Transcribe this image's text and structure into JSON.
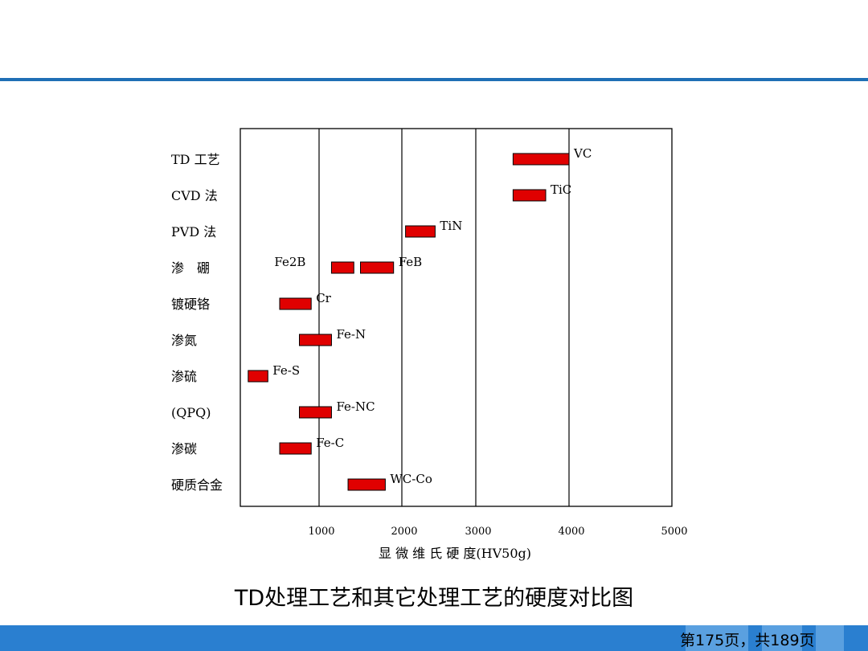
{
  "chart_data": {
    "type": "bar",
    "subtype": "floating-range",
    "xlabel": "显 微 维 氏 硬 度(HV50g)",
    "xlim": [
      0,
      5000
    ],
    "xticks": [
      1000,
      2000,
      3000,
      4000,
      5000
    ],
    "xtick_labels": [
      "1000",
      "2000",
      "3000",
      "4000",
      "5000"
    ],
    "grid": true,
    "categories": [
      "TD 工艺",
      "CVD 法",
      "PVD 法",
      "渗　硼",
      "镀硬铬",
      "渗氮",
      "渗硫",
      "(QPQ)",
      "渗碳",
      "硬质合金"
    ],
    "bar_color": "#e00000",
    "bars": [
      {
        "row": 0,
        "start": 3400,
        "end": 4000,
        "label": "VC"
      },
      {
        "row": 1,
        "start": 3400,
        "end": 3750,
        "label": "TiC"
      },
      {
        "row": 2,
        "start": 2050,
        "end": 2450,
        "label": "TiN"
      },
      {
        "row": 3,
        "start": 1150,
        "end": 1420,
        "label": "Fe2B",
        "label_side": "left"
      },
      {
        "row": 3,
        "start": 1500,
        "end": 1900,
        "label": "FeB"
      },
      {
        "row": 4,
        "start": 500,
        "end": 900,
        "label": "Cr"
      },
      {
        "row": 5,
        "start": 750,
        "end": 1150,
        "label": "Fe-N"
      },
      {
        "row": 6,
        "start": 100,
        "end": 350,
        "label": "Fe-S"
      },
      {
        "row": 7,
        "start": 750,
        "end": 1150,
        "label": "Fe-NC"
      },
      {
        "row": 8,
        "start": 500,
        "end": 900,
        "label": "Fe-C"
      },
      {
        "row": 9,
        "start": 1350,
        "end": 1800,
        "label": "WC-Co"
      }
    ]
  },
  "caption": "TD处理工艺和其它处理工艺的硬度对比图",
  "footer": {
    "page_label": "第175页，共189页"
  },
  "colors": {
    "rule": "#1f6fb5",
    "footer": "#2a7fd0"
  }
}
